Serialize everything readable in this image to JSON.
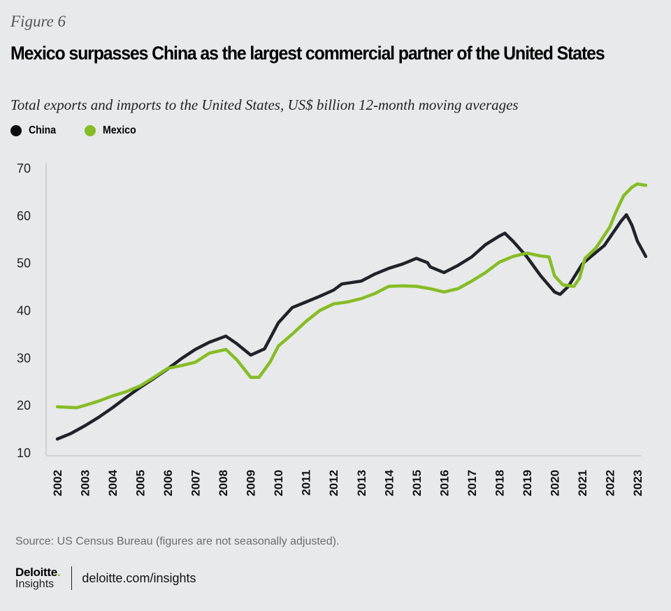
{
  "figure_label": "Figure 6",
  "title": "Mexico surpasses China as the largest commercial partner of the United States",
  "subtitle": "Total exports and imports to the United States, US$ billion 12-month moving averages",
  "legend": [
    {
      "name": "China",
      "color": "#1f2329"
    },
    {
      "name": "Mexico",
      "color": "#86bc25"
    }
  ],
  "source": "Source: US Census Bureau (figures are not seasonally adjusted).",
  "footer": {
    "brand_name": "Deloitte",
    "brand_dot": ".",
    "brand_sub": "Insights",
    "site": "deloitte.com/insights"
  },
  "chart_data": {
    "type": "line",
    "title": "Mexico surpasses China as the largest commercial partner of the United States",
    "subtitle": "Total exports and imports to the United States, US$ billion 12-month moving averages",
    "xlabel": "",
    "ylabel": "US$ billion",
    "xlim": [
      2002,
      2023
    ],
    "ylim": [
      10,
      70
    ],
    "yticks": [
      10,
      20,
      30,
      40,
      50,
      60,
      70
    ],
    "xticks": [
      "2002",
      "2003",
      "2004",
      "2005",
      "2006",
      "2007",
      "2008",
      "2009",
      "2010",
      "2011",
      "2012",
      "2013",
      "2014",
      "2015",
      "2016",
      "2017",
      "2018",
      "2019",
      "2020",
      "2021",
      "2022",
      "2023"
    ],
    "grid": false,
    "legend_position": "top-left",
    "series": [
      {
        "name": "China",
        "color": "#1f2329",
        "x": [
          2002.0,
          2002.5,
          2003.0,
          2003.5,
          2004.0,
          2004.5,
          2005.0,
          2005.5,
          2006.0,
          2006.5,
          2007.0,
          2007.5,
          2008.1,
          2008.5,
          2009.0,
          2009.5,
          2010.0,
          2010.5,
          2011.0,
          2011.5,
          2012.0,
          2012.3,
          2013.0,
          2013.5,
          2014.0,
          2014.5,
          2015.0,
          2015.4,
          2015.5,
          2016.0,
          2016.5,
          2017.0,
          2017.5,
          2018.0,
          2018.2,
          2018.5,
          2019.0,
          2019.5,
          2020.0,
          2020.2,
          2020.5,
          2021.0,
          2021.3,
          2021.8,
          2022.0,
          2022.4,
          2022.6,
          2022.8,
          2023.0,
          2023.3
        ],
        "values": [
          12.8,
          14.0,
          15.6,
          17.4,
          19.4,
          21.6,
          23.7,
          25.6,
          27.6,
          29.8,
          31.7,
          33.2,
          34.5,
          32.9,
          30.5,
          31.8,
          37.3,
          40.5,
          41.7,
          42.9,
          44.2,
          45.5,
          46.1,
          47.6,
          48.8,
          49.7,
          50.9,
          50.0,
          49.1,
          47.9,
          49.4,
          51.2,
          53.8,
          55.6,
          56.2,
          54.5,
          51.2,
          47.2,
          43.8,
          43.3,
          45.0,
          49.7,
          51.2,
          53.6,
          55.3,
          58.7,
          60.1,
          57.9,
          54.5,
          51.3
        ]
      },
      {
        "name": "Mexico",
        "color": "#86bc25",
        "x": [
          2002.0,
          2002.7,
          2003.0,
          2003.5,
          2004.0,
          2004.5,
          2005.0,
          2005.5,
          2006.0,
          2006.5,
          2007.0,
          2007.5,
          2008.1,
          2008.5,
          2009.0,
          2009.3,
          2009.7,
          2010.0,
          2010.5,
          2011.0,
          2011.5,
          2012.0,
          2012.5,
          2013.0,
          2013.5,
          2014.0,
          2014.5,
          2015.0,
          2015.5,
          2016.0,
          2016.5,
          2017.0,
          2017.5,
          2018.0,
          2018.5,
          2019.0,
          2019.5,
          2019.8,
          2020.0,
          2020.3,
          2020.7,
          2020.9,
          2021.1,
          2021.5,
          2022.0,
          2022.2,
          2022.5,
          2022.8,
          2023.0,
          2023.3
        ],
        "values": [
          19.6,
          19.4,
          19.9,
          20.8,
          21.9,
          22.8,
          24.0,
          25.8,
          27.7,
          28.3,
          29.0,
          30.9,
          31.7,
          29.5,
          25.8,
          25.8,
          29.0,
          32.4,
          34.9,
          37.6,
          39.9,
          41.3,
          41.7,
          42.4,
          43.5,
          45.0,
          45.1,
          45.0,
          44.5,
          43.8,
          44.5,
          46.1,
          47.9,
          50.1,
          51.3,
          52.0,
          51.4,
          51.2,
          47.2,
          45.3,
          45.0,
          46.7,
          50.9,
          53.1,
          57.5,
          60.4,
          64.1,
          65.9,
          66.6,
          66.3
        ]
      }
    ]
  }
}
